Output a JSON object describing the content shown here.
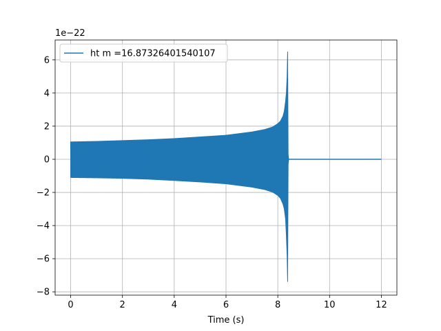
{
  "chart_data": {
    "type": "line",
    "title": "",
    "xlabel": "Time (s)",
    "ylabel": "",
    "y_offset_label": "1e−22",
    "xlim": [
      -0.6,
      12.6
    ],
    "ylim": [
      -8.2,
      7.2
    ],
    "x_ticks": [
      0,
      2,
      4,
      6,
      8,
      10,
      12
    ],
    "x_tick_labels": [
      "0",
      "2",
      "4",
      "6",
      "8",
      "10",
      "12"
    ],
    "y_ticks": [
      -8,
      -6,
      -4,
      -2,
      0,
      2,
      4,
      6
    ],
    "y_tick_labels": [
      "−8",
      "−6",
      "−4",
      "−2",
      "0",
      "2",
      "4",
      "6"
    ],
    "grid": true,
    "legend_position": "upper-left",
    "series": [
      {
        "name": "ht m =16.87326401540107",
        "color": "#1f77b4",
        "envelope_x": [
          0.0,
          1.0,
          2.0,
          3.0,
          4.0,
          5.0,
          6.0,
          6.5,
          7.0,
          7.5,
          7.8,
          8.0,
          8.1,
          8.2,
          8.25,
          8.3,
          8.33,
          8.36,
          8.38,
          8.4,
          8.42
        ],
        "envelope_upper": [
          1.05,
          1.08,
          1.13,
          1.18,
          1.25,
          1.35,
          1.45,
          1.55,
          1.65,
          1.8,
          1.95,
          2.15,
          2.3,
          2.6,
          2.9,
          3.5,
          4.0,
          5.0,
          6.5,
          0.3,
          0.0
        ],
        "envelope_lower": [
          -1.1,
          -1.12,
          -1.15,
          -1.2,
          -1.28,
          -1.37,
          -1.48,
          -1.58,
          -1.68,
          -1.83,
          -1.98,
          -2.18,
          -2.35,
          -2.7,
          -3.0,
          -3.6,
          -4.6,
          -5.8,
          -7.4,
          -0.3,
          0.0
        ],
        "flat_x": [
          8.42,
          12.0
        ],
        "flat_y": [
          0.0,
          0.0
        ]
      }
    ]
  }
}
